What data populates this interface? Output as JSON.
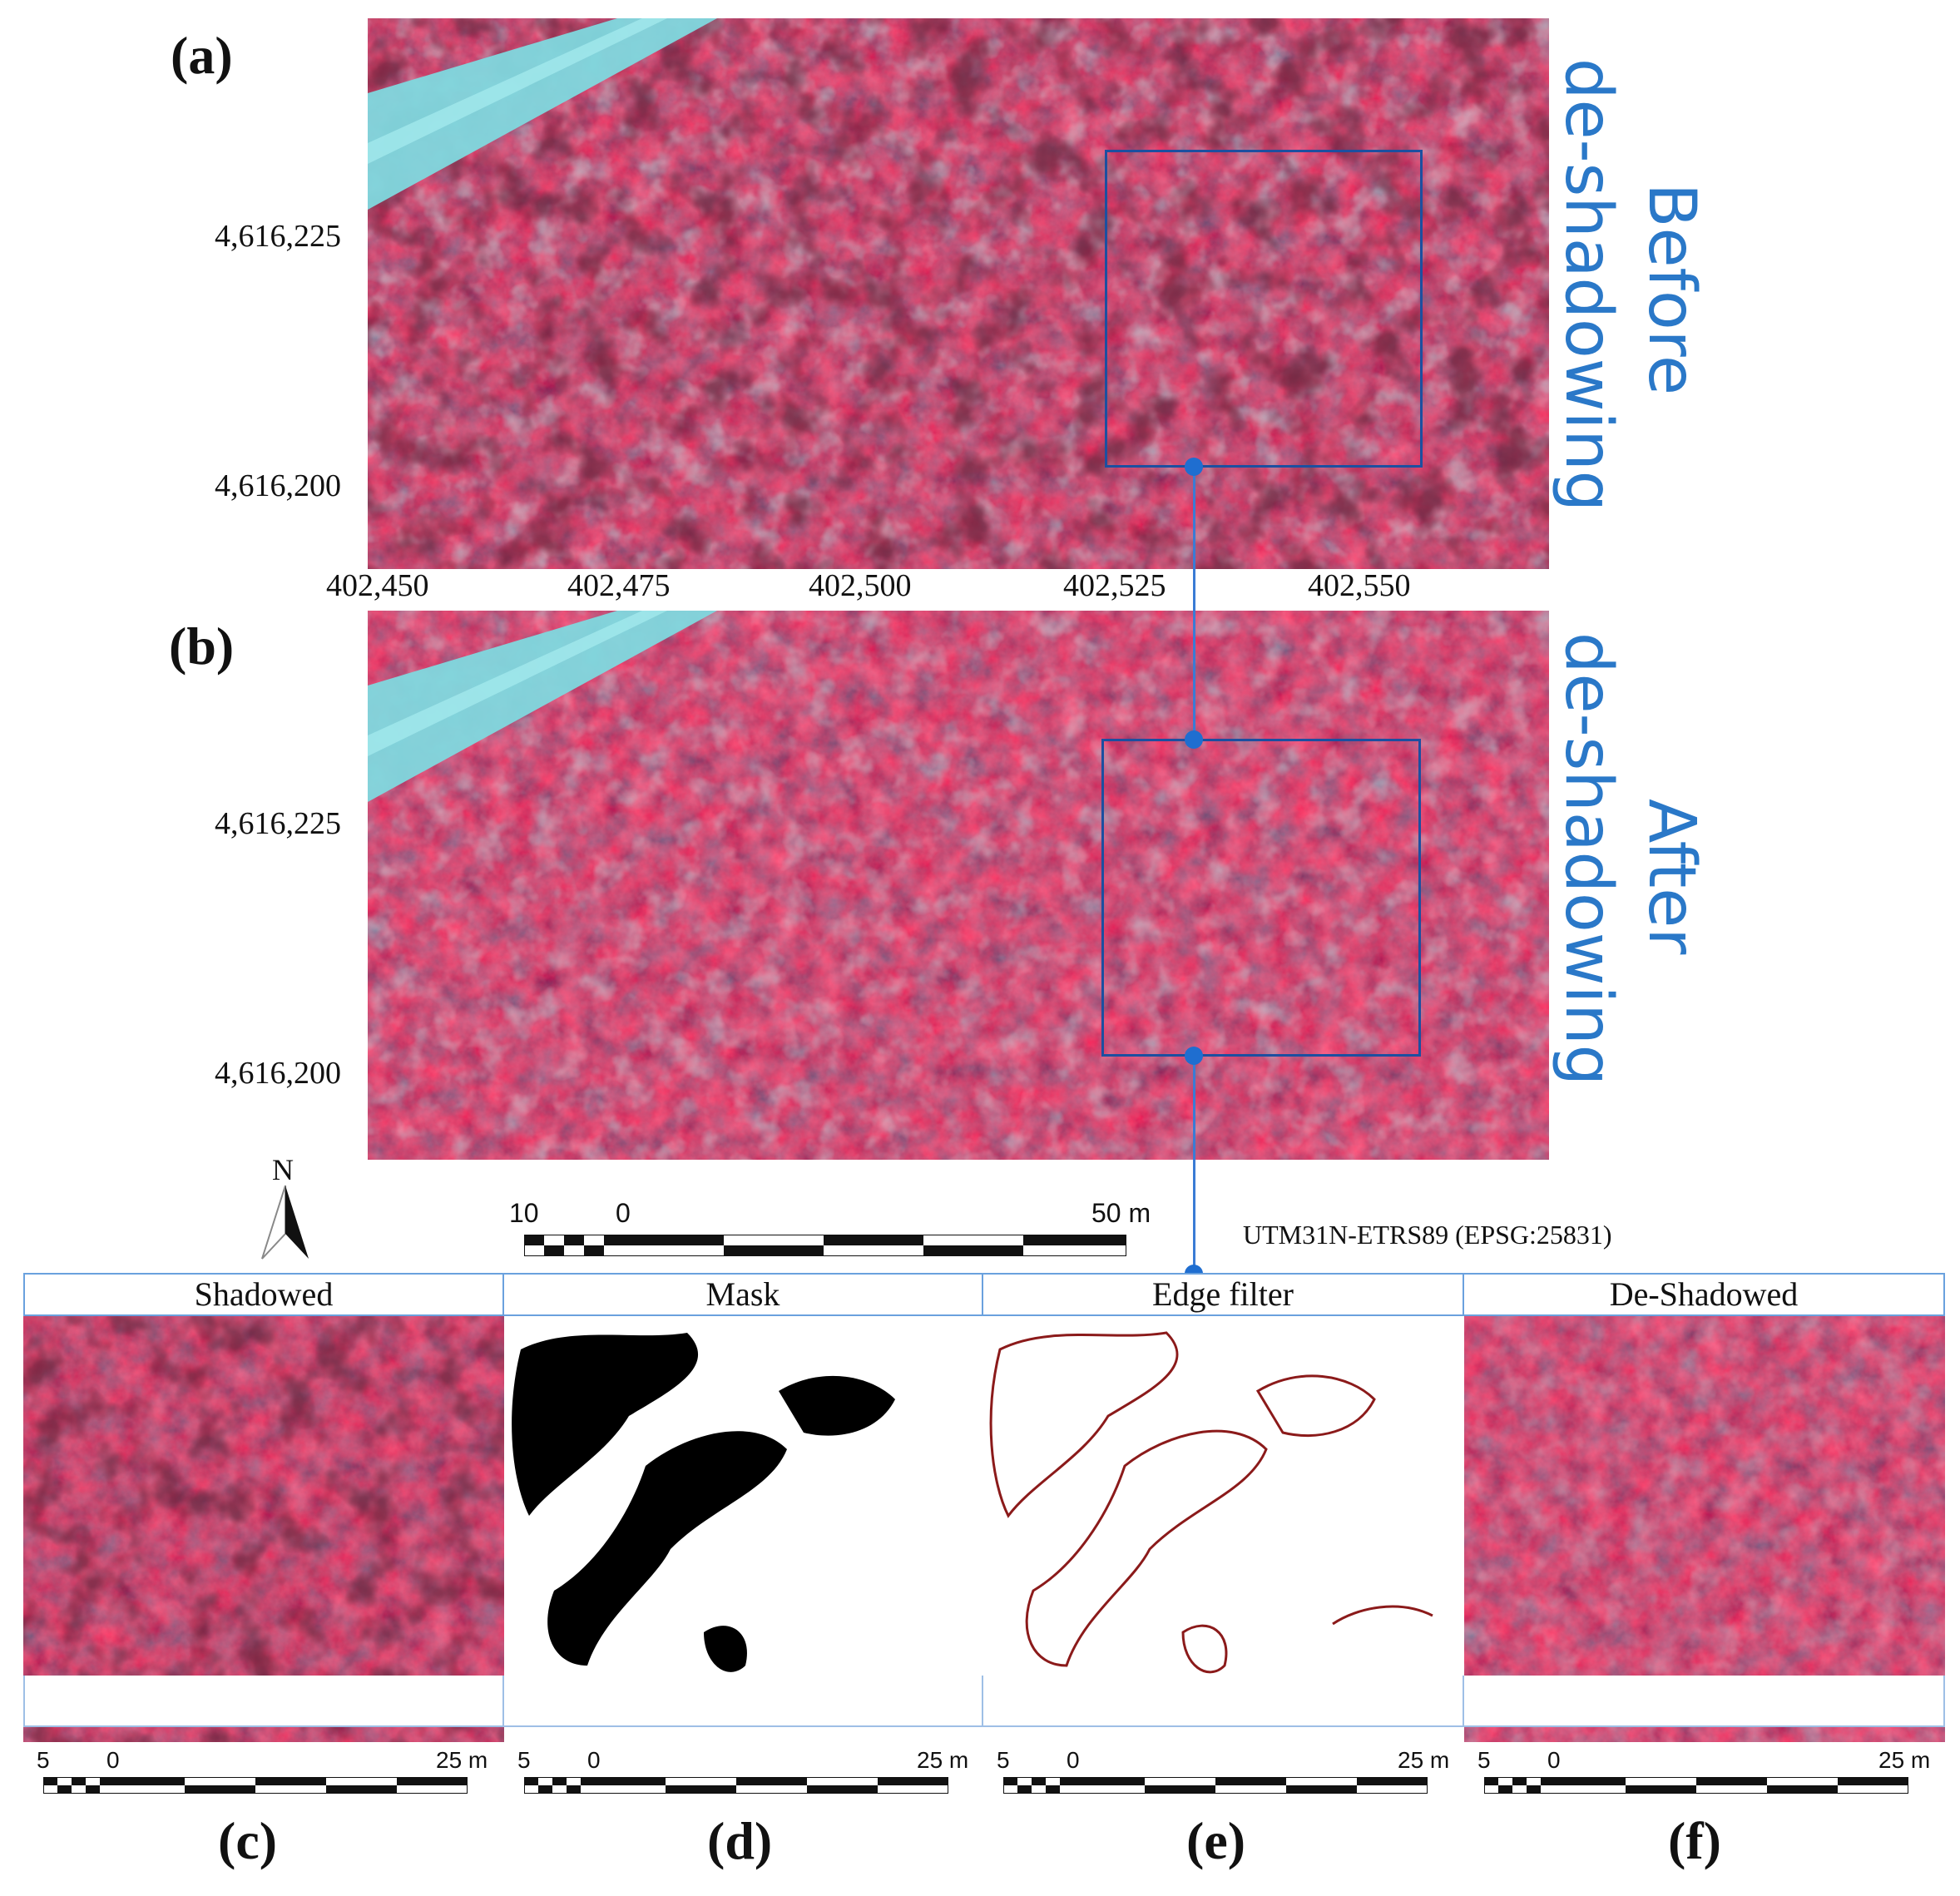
{
  "figure": {
    "panels": {
      "a": "(a)",
      "b": "(b)",
      "c": "(c)",
      "d": "(d)",
      "e": "(e)",
      "f": "(f)"
    },
    "side_labels": {
      "before": [
        "Before",
        "de-shadowing"
      ],
      "after": [
        "After",
        "de-shadowing"
      ]
    },
    "y_ticks": [
      "4,616,225",
      "4,616,200"
    ],
    "x_ticks": [
      "402,450",
      "402,475",
      "402,500",
      "402,525",
      "402,550"
    ],
    "north": "N",
    "main_scale": {
      "left": "10",
      "zero": "0",
      "right": "50 m"
    },
    "crs": "UTM31N-ETRS89 (EPSG:25831)",
    "subpanels": [
      {
        "title": "Shadowed"
      },
      {
        "title": "Mask"
      },
      {
        "title": "Edge filter"
      },
      {
        "title": "De-Shadowed"
      }
    ],
    "small_scale": {
      "left": "5",
      "zero": "0",
      "right": "25 m"
    },
    "colors": {
      "vegetation": "#b3163a",
      "water": "#7fd8de",
      "frame": "#1c4fa0",
      "accent": "#2a78c8",
      "edge": "#8b1a1a"
    }
  }
}
